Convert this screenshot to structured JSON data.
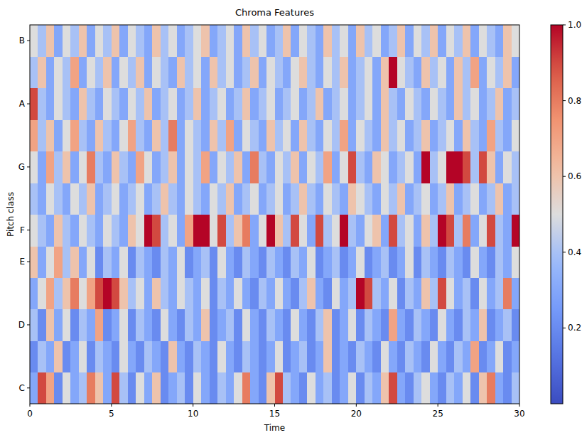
{
  "chart_data": {
    "type": "heatmap",
    "title": "Chroma Features",
    "x_label": "Time",
    "y_label": "Pitch class",
    "x": [
      0,
      0.5,
      1,
      1.5,
      2,
      2.5,
      3,
      3.5,
      4,
      4.5,
      5,
      5.5,
      6,
      6.5,
      7,
      7.5,
      8,
      8.5,
      9,
      9.5,
      10,
      10.5,
      11,
      11.5,
      12,
      12.5,
      13,
      13.5,
      14,
      14.5,
      15,
      15.5,
      16,
      16.5,
      17,
      17.5,
      18,
      18.5,
      19,
      19.5,
      20,
      20.5,
      21,
      21.5,
      22,
      22.5,
      23,
      23.5,
      24,
      24.5,
      25,
      25.5,
      26,
      26.5,
      27,
      27.5,
      28,
      28.5,
      29,
      29.5
    ],
    "xlim": [
      0,
      30
    ],
    "xticks": [
      0,
      5,
      10,
      15,
      20,
      25,
      30
    ],
    "categories": [
      "C",
      null,
      "D",
      null,
      "E",
      "F",
      null,
      "G",
      null,
      "A",
      null,
      "B"
    ],
    "values": [
      [
        0.3,
        0.9,
        0.7,
        0.2,
        0.5,
        0.3,
        0.4,
        0.8,
        0.6,
        0.3,
        0.9,
        0.4,
        0.2,
        0.5,
        0.3,
        0.6,
        0.2,
        0.3,
        0.4,
        0.2,
        0.5,
        0.3,
        0.2,
        0.4,
        0.3,
        0.5,
        0.8,
        0.3,
        0.2,
        0.6,
        0.9,
        0.4,
        0.3,
        0.2,
        0.5,
        0.3,
        0.4,
        0.2,
        0.3,
        0.5,
        0.2,
        0.4,
        0.3,
        0.6,
        0.9,
        0.3,
        0.2,
        0.4,
        0.5,
        0.3,
        0.2,
        0.4,
        0.3,
        0.5,
        0.2,
        0.6,
        0.8,
        0.3,
        0.2,
        0.4
      ],
      [
        0.2,
        0.4,
        0.3,
        0.6,
        0.2,
        0.3,
        0.5,
        0.2,
        0.4,
        0.3,
        0.2,
        0.5,
        0.3,
        0.2,
        0.4,
        0.3,
        0.2,
        0.6,
        0.3,
        0.2,
        0.4,
        0.3,
        0.2,
        0.5,
        0.3,
        0.2,
        0.4,
        0.3,
        0.2,
        0.3,
        0.5,
        0.2,
        0.3,
        0.4,
        0.2,
        0.3,
        0.6,
        0.2,
        0.3,
        0.2,
        0.4,
        0.3,
        0.2,
        0.5,
        0.3,
        0.2,
        0.4,
        0.3,
        0.2,
        0.5,
        0.3,
        0.2,
        0.4,
        0.3,
        0.7,
        0.2,
        0.3,
        0.5,
        0.2,
        0.3
      ],
      [
        0.4,
        0.2,
        0.6,
        0.3,
        0.5,
        0.2,
        0.4,
        0.3,
        0.7,
        0.2,
        0.3,
        0.5,
        0.2,
        0.4,
        0.3,
        0.2,
        0.5,
        0.3,
        0.2,
        0.4,
        0.3,
        0.6,
        0.2,
        0.3,
        0.4,
        0.2,
        0.5,
        0.3,
        0.2,
        0.4,
        0.3,
        0.2,
        0.5,
        0.3,
        0.2,
        0.4,
        0.6,
        0.2,
        0.3,
        0.5,
        0.2,
        0.4,
        0.3,
        0.2,
        0.7,
        0.3,
        0.2,
        0.4,
        0.3,
        0.2,
        0.5,
        0.3,
        0.2,
        0.4,
        0.3,
        0.6,
        0.2,
        0.3,
        0.4,
        0.2
      ],
      [
        0.3,
        0.5,
        0.7,
        0.4,
        0.6,
        0.8,
        0.5,
        0.7,
        0.9,
        1.0,
        0.9,
        0.6,
        0.4,
        0.5,
        0.3,
        0.6,
        0.4,
        0.3,
        0.5,
        0.4,
        0.3,
        0.5,
        0.2,
        0.4,
        0.3,
        0.5,
        0.3,
        0.2,
        0.4,
        0.3,
        0.5,
        0.3,
        0.2,
        0.4,
        0.6,
        0.3,
        0.2,
        0.5,
        0.3,
        0.4,
        1.0,
        0.9,
        0.4,
        0.3,
        0.5,
        0.2,
        0.4,
        0.3,
        0.6,
        0.4,
        0.9,
        0.5,
        0.3,
        0.4,
        0.2,
        0.5,
        0.3,
        0.4,
        0.8,
        0.3
      ],
      [
        0.6,
        0.3,
        0.5,
        0.7,
        0.4,
        0.6,
        0.3,
        0.5,
        0.2,
        0.4,
        0.3,
        0.5,
        0.2,
        0.4,
        0.3,
        0.2,
        0.4,
        0.3,
        0.5,
        0.2,
        0.3,
        0.4,
        0.2,
        0.5,
        0.3,
        0.2,
        0.4,
        0.3,
        0.2,
        0.4,
        0.3,
        0.2,
        0.4,
        0.3,
        0.5,
        0.2,
        0.3,
        0.4,
        0.2,
        0.3,
        0.5,
        0.2,
        0.3,
        0.4,
        0.2,
        0.3,
        0.5,
        0.2,
        0.4,
        0.3,
        0.2,
        0.4,
        0.3,
        0.2,
        0.5,
        0.3,
        0.2,
        0.4,
        0.3,
        0.5
      ],
      [
        0.5,
        0.4,
        0.3,
        0.6,
        0.4,
        0.3,
        0.5,
        0.4,
        0.3,
        0.5,
        0.4,
        0.3,
        0.6,
        0.5,
        1.0,
        0.9,
        0.4,
        0.5,
        0.3,
        0.7,
        1.0,
        1.0,
        0.5,
        0.9,
        0.4,
        0.6,
        0.8,
        0.3,
        0.5,
        1.0,
        0.6,
        0.4,
        0.9,
        0.5,
        0.3,
        0.9,
        0.4,
        0.5,
        1.0,
        0.4,
        0.3,
        0.5,
        0.6,
        0.3,
        0.9,
        0.4,
        0.5,
        0.3,
        0.6,
        0.4,
        1.0,
        0.9,
        0.4,
        0.8,
        0.3,
        0.5,
        0.9,
        0.4,
        0.3,
        1.0
      ],
      [
        0.4,
        0.3,
        0.5,
        0.4,
        0.3,
        0.5,
        0.4,
        0.6,
        0.3,
        0.4,
        0.5,
        0.3,
        0.4,
        0.5,
        0.3,
        0.4,
        0.6,
        0.4,
        0.3,
        0.5,
        0.4,
        0.3,
        0.5,
        0.4,
        0.6,
        0.3,
        0.4,
        0.5,
        0.3,
        0.4,
        0.5,
        0.3,
        0.4,
        0.6,
        0.4,
        0.3,
        0.5,
        0.4,
        0.3,
        0.6,
        0.5,
        0.4,
        0.3,
        0.5,
        0.4,
        0.6,
        0.3,
        0.4,
        0.5,
        0.3,
        0.4,
        0.6,
        0.3,
        0.4,
        0.5,
        0.3,
        0.4,
        0.6,
        0.3,
        0.4
      ],
      [
        0.5,
        0.3,
        0.7,
        0.4,
        0.6,
        0.3,
        0.5,
        0.8,
        0.4,
        0.3,
        0.6,
        0.4,
        0.3,
        0.7,
        0.5,
        0.3,
        0.4,
        0.6,
        0.3,
        0.5,
        0.4,
        0.7,
        0.3,
        0.5,
        0.4,
        0.6,
        0.3,
        0.8,
        0.4,
        0.3,
        0.5,
        0.4,
        0.6,
        0.3,
        0.5,
        0.4,
        0.7,
        0.3,
        0.5,
        0.9,
        0.4,
        0.3,
        0.6,
        0.5,
        0.3,
        0.4,
        0.5,
        0.3,
        1.0,
        0.4,
        0.5,
        1.0,
        1.0,
        0.9,
        0.4,
        0.9,
        0.6,
        0.3,
        0.5,
        0.4
      ],
      [
        0.7,
        0.4,
        0.6,
        0.3,
        0.5,
        0.7,
        0.4,
        0.3,
        0.6,
        0.4,
        0.3,
        0.5,
        0.7,
        0.4,
        0.3,
        0.6,
        0.4,
        0.8,
        0.3,
        0.5,
        0.4,
        0.3,
        0.6,
        0.4,
        0.7,
        0.3,
        0.5,
        0.4,
        0.3,
        0.6,
        0.4,
        0.5,
        0.3,
        0.6,
        0.4,
        0.3,
        0.5,
        0.4,
        0.7,
        0.3,
        0.5,
        0.4,
        0.3,
        0.6,
        0.4,
        0.5,
        0.3,
        0.4,
        0.6,
        0.3,
        0.4,
        0.5,
        0.3,
        0.6,
        0.4,
        0.3,
        0.7,
        0.4,
        0.3,
        0.5
      ],
      [
        0.9,
        0.4,
        0.3,
        0.5,
        0.4,
        0.3,
        0.6,
        0.4,
        0.3,
        0.5,
        0.4,
        0.3,
        0.5,
        0.4,
        0.6,
        0.3,
        0.4,
        0.5,
        0.3,
        0.4,
        0.6,
        0.3,
        0.4,
        0.5,
        0.3,
        0.4,
        0.6,
        0.3,
        0.4,
        0.5,
        0.3,
        0.4,
        0.5,
        0.3,
        0.4,
        0.6,
        0.3,
        0.4,
        0.5,
        0.3,
        0.4,
        0.5,
        0.3,
        0.6,
        0.4,
        0.3,
        0.5,
        0.4,
        0.3,
        0.5,
        0.4,
        0.3,
        0.6,
        0.4,
        0.5,
        0.3,
        0.4,
        0.6,
        0.3,
        0.4
      ],
      [
        0.4,
        0.6,
        0.3,
        0.5,
        0.4,
        0.7,
        0.3,
        0.5,
        0.4,
        0.6,
        0.3,
        0.5,
        0.4,
        0.6,
        0.3,
        0.5,
        0.4,
        0.3,
        0.6,
        0.4,
        0.5,
        0.3,
        0.6,
        0.4,
        0.5,
        0.3,
        0.4,
        0.6,
        0.3,
        0.5,
        0.4,
        0.3,
        0.5,
        0.6,
        0.4,
        0.3,
        0.5,
        0.4,
        0.6,
        0.3,
        0.4,
        0.5,
        0.3,
        0.6,
        1.0,
        0.5,
        0.4,
        0.3,
        0.6,
        0.4,
        0.5,
        0.3,
        0.6,
        0.4,
        0.7,
        0.3,
        0.5,
        0.4,
        0.6,
        0.3
      ],
      [
        0.5,
        0.4,
        0.6,
        0.3,
        0.5,
        0.4,
        0.6,
        0.3,
        0.5,
        0.4,
        0.6,
        0.3,
        0.5,
        0.4,
        0.3,
        0.6,
        0.4,
        0.5,
        0.3,
        0.4,
        0.5,
        0.6,
        0.3,
        0.4,
        0.5,
        0.3,
        0.6,
        0.4,
        0.5,
        0.3,
        0.4,
        0.6,
        0.3,
        0.5,
        0.4,
        0.3,
        0.6,
        0.4,
        0.5,
        0.3,
        0.6,
        0.4,
        0.5,
        0.3,
        0.4,
        0.6,
        0.3,
        0.5,
        0.4,
        0.6,
        0.3,
        0.5,
        0.4,
        0.6,
        0.3,
        0.5,
        0.4,
        0.3,
        0.6,
        0.5
      ]
    ],
    "colorbar_range": [
      0,
      1
    ],
    "colorbar_ticks": [
      0.2,
      0.4,
      0.6,
      0.8,
      {
        "value": 1,
        "label": "1.0"
      }
    ]
  }
}
